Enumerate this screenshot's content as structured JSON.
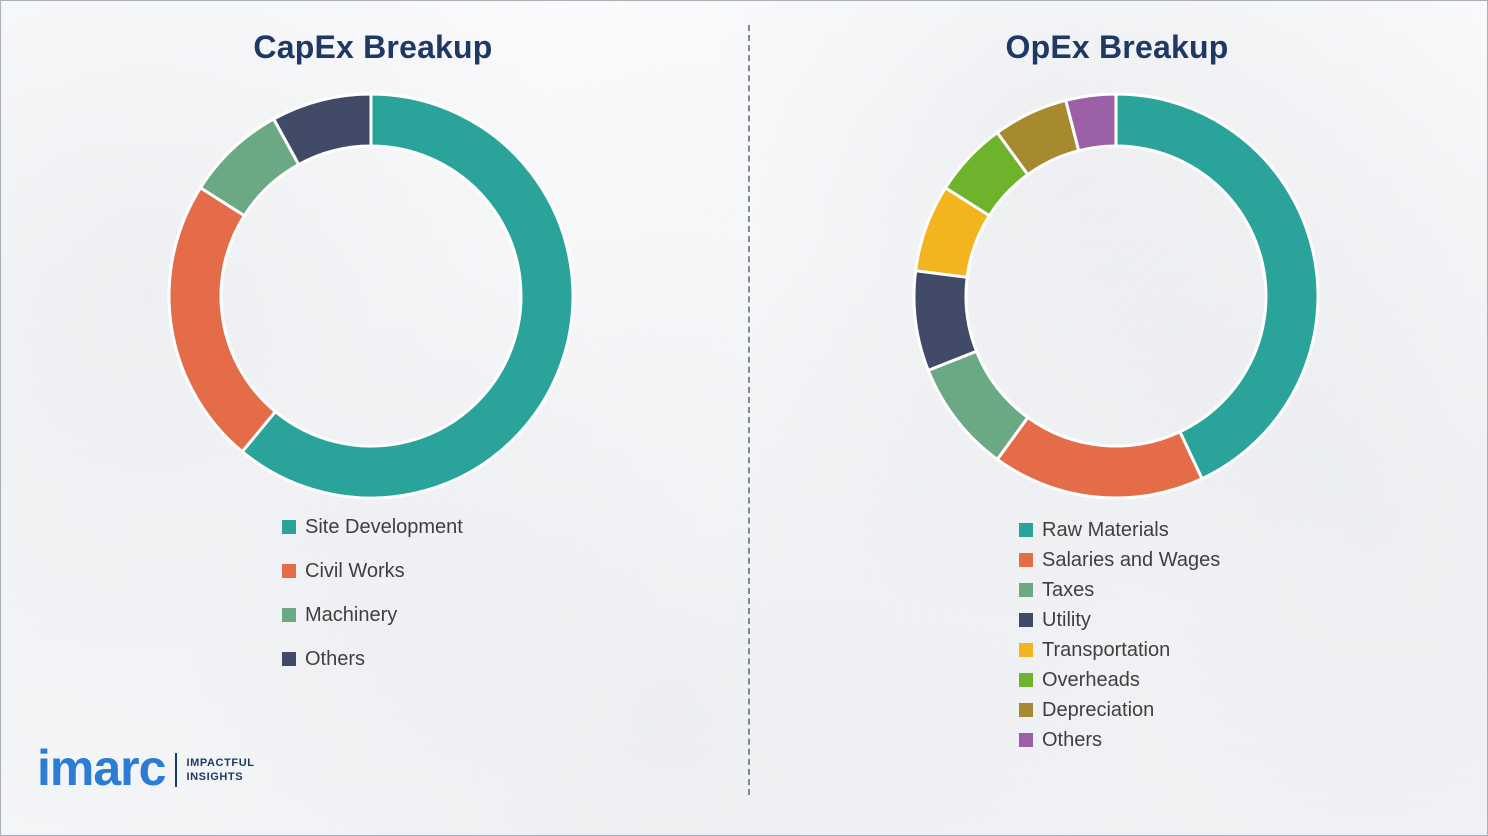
{
  "chart_data": [
    {
      "type": "pie",
      "subtype": "donut",
      "title": "CapEx Breakup",
      "labels": [
        "Site Development",
        "Civil Works",
        "Machinery",
        "Others"
      ],
      "values": [
        61,
        23,
        8,
        8
      ],
      "values_note": "percent, estimated from arc angles",
      "colors": [
        "#2aa49a",
        "#e46c48",
        "#6ba984",
        "#414b68"
      ],
      "start_angle_deg": 0,
      "direction": "clockwise",
      "grid": false,
      "legend_position": "below-chart-left"
    },
    {
      "type": "pie",
      "subtype": "donut",
      "title": "OpEx Breakup",
      "labels": [
        "Raw Materials",
        "Salaries and Wages",
        "Taxes",
        "Utility",
        "Transportation",
        "Overheads",
        "Depreciation",
        "Others"
      ],
      "values": [
        43,
        17,
        9,
        8,
        7,
        6,
        6,
        4
      ],
      "values_note": "percent, estimated from arc angles",
      "colors": [
        "#2aa49a",
        "#e46c48",
        "#6ba984",
        "#414b68",
        "#f2b51f",
        "#6db32c",
        "#a78a30",
        "#9c60a6"
      ],
      "start_angle_deg": 0,
      "direction": "clockwise",
      "grid": false,
      "legend_position": "below-chart-left"
    }
  ],
  "logo": {
    "wordmark": "imarc",
    "tagline_line1": "IMPACTFUL",
    "tagline_line2": "INSIGHTS"
  },
  "styles": {
    "title_color": "#1f3864",
    "legend_text_color": "#3f3f3f",
    "wordmark_color": "#2b7cd3",
    "tagline_color": "#1f3864",
    "divider_color": "#83888e",
    "segment_gap_color": "#ffffff"
  }
}
